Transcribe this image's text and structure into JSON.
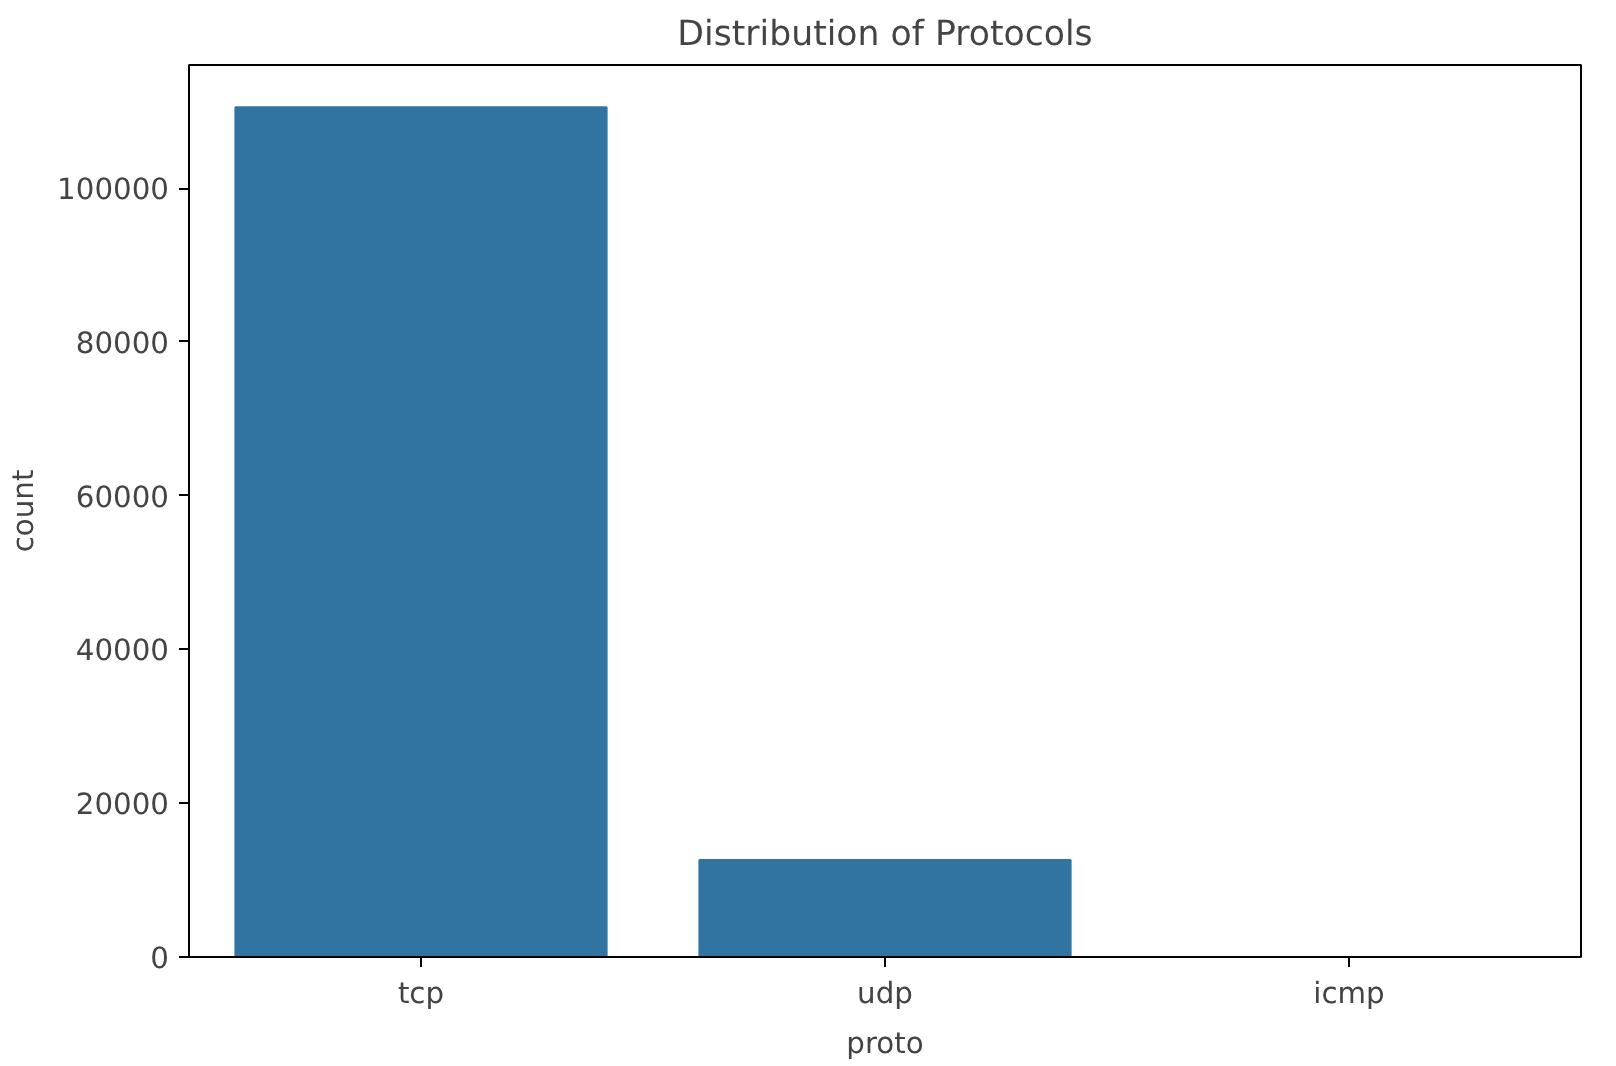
{
  "chart_data": {
    "type": "bar",
    "title": "Distribution of Protocols",
    "xlabel": "proto",
    "ylabel": "count",
    "categories": [
      "tcp",
      "udp",
      "icmp"
    ],
    "values": [
      110500,
      12600,
      0
    ],
    "color": "#3274a1",
    "ylim": [
      0,
      116000
    ],
    "yticks": [
      0,
      20000,
      40000,
      60000,
      80000,
      100000
    ],
    "grid": false
  }
}
